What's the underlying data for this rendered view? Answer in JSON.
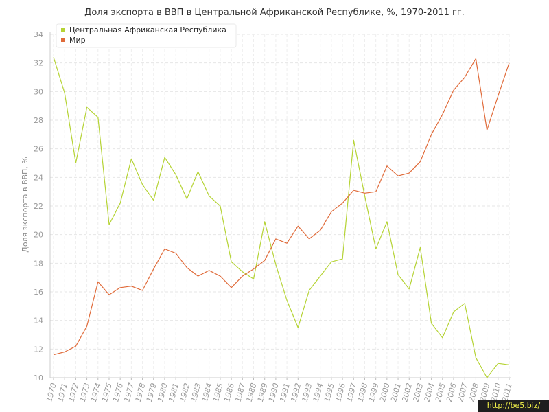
{
  "chart_data": {
    "type": "line",
    "title": "Доля экспорта в ВВП в Центральной Африканской Республике, %, 1970-2011 гг.",
    "xlabel": "",
    "ylabel": "Доля экспорта в ВВП, %",
    "ylim": [
      10,
      34
    ],
    "yticks": [
      10,
      12,
      14,
      16,
      18,
      20,
      22,
      24,
      26,
      28,
      30,
      32,
      34
    ],
    "grid": true,
    "legend_position": "top-left",
    "x": [
      "1970",
      "1971",
      "1972",
      "1973",
      "1974",
      "1975",
      "1976",
      "1977",
      "1978",
      "1979",
      "1980",
      "1981",
      "1982",
      "1983",
      "1984",
      "1985",
      "1986",
      "1987",
      "1988",
      "1989",
      "1990",
      "1991",
      "1992",
      "1993",
      "1994",
      "1995",
      "1996",
      "1997",
      "1998",
      "1999",
      "2000",
      "2001",
      "2002",
      "2003",
      "2004",
      "2005",
      "2006",
      "2007",
      "2008",
      "2009",
      "2010",
      "2011"
    ],
    "series": [
      {
        "name": "Центральная Африканская Республика",
        "color": "#b5d334",
        "values": [
          32.4,
          29.9,
          25.0,
          28.9,
          28.2,
          20.7,
          22.2,
          25.3,
          23.5,
          22.4,
          25.4,
          24.2,
          22.5,
          24.4,
          22.7,
          22.0,
          18.1,
          17.4,
          16.9,
          20.9,
          17.9,
          15.4,
          13.5,
          16.1,
          17.1,
          18.1,
          18.3,
          26.6,
          22.7,
          19.0,
          20.9,
          17.2,
          16.2,
          19.1,
          13.8,
          12.8,
          14.6,
          15.2,
          11.4,
          10.0,
          11.0,
          10.9
        ]
      },
      {
        "name": "Мир",
        "color": "#e06b3a",
        "values": [
          11.6,
          11.8,
          12.2,
          13.6,
          16.7,
          15.8,
          16.3,
          16.4,
          16.1,
          17.6,
          19.0,
          18.7,
          17.7,
          17.1,
          17.5,
          17.1,
          16.3,
          17.1,
          17.6,
          18.2,
          19.7,
          19.4,
          20.6,
          19.7,
          20.3,
          21.6,
          22.2,
          23.1,
          22.9,
          23.0,
          24.8,
          24.1,
          24.3,
          25.1,
          27.0,
          28.4,
          30.1,
          31.0,
          32.3,
          27.3,
          29.7,
          32.0
        ]
      }
    ]
  },
  "watermark": "http://be5.biz/"
}
